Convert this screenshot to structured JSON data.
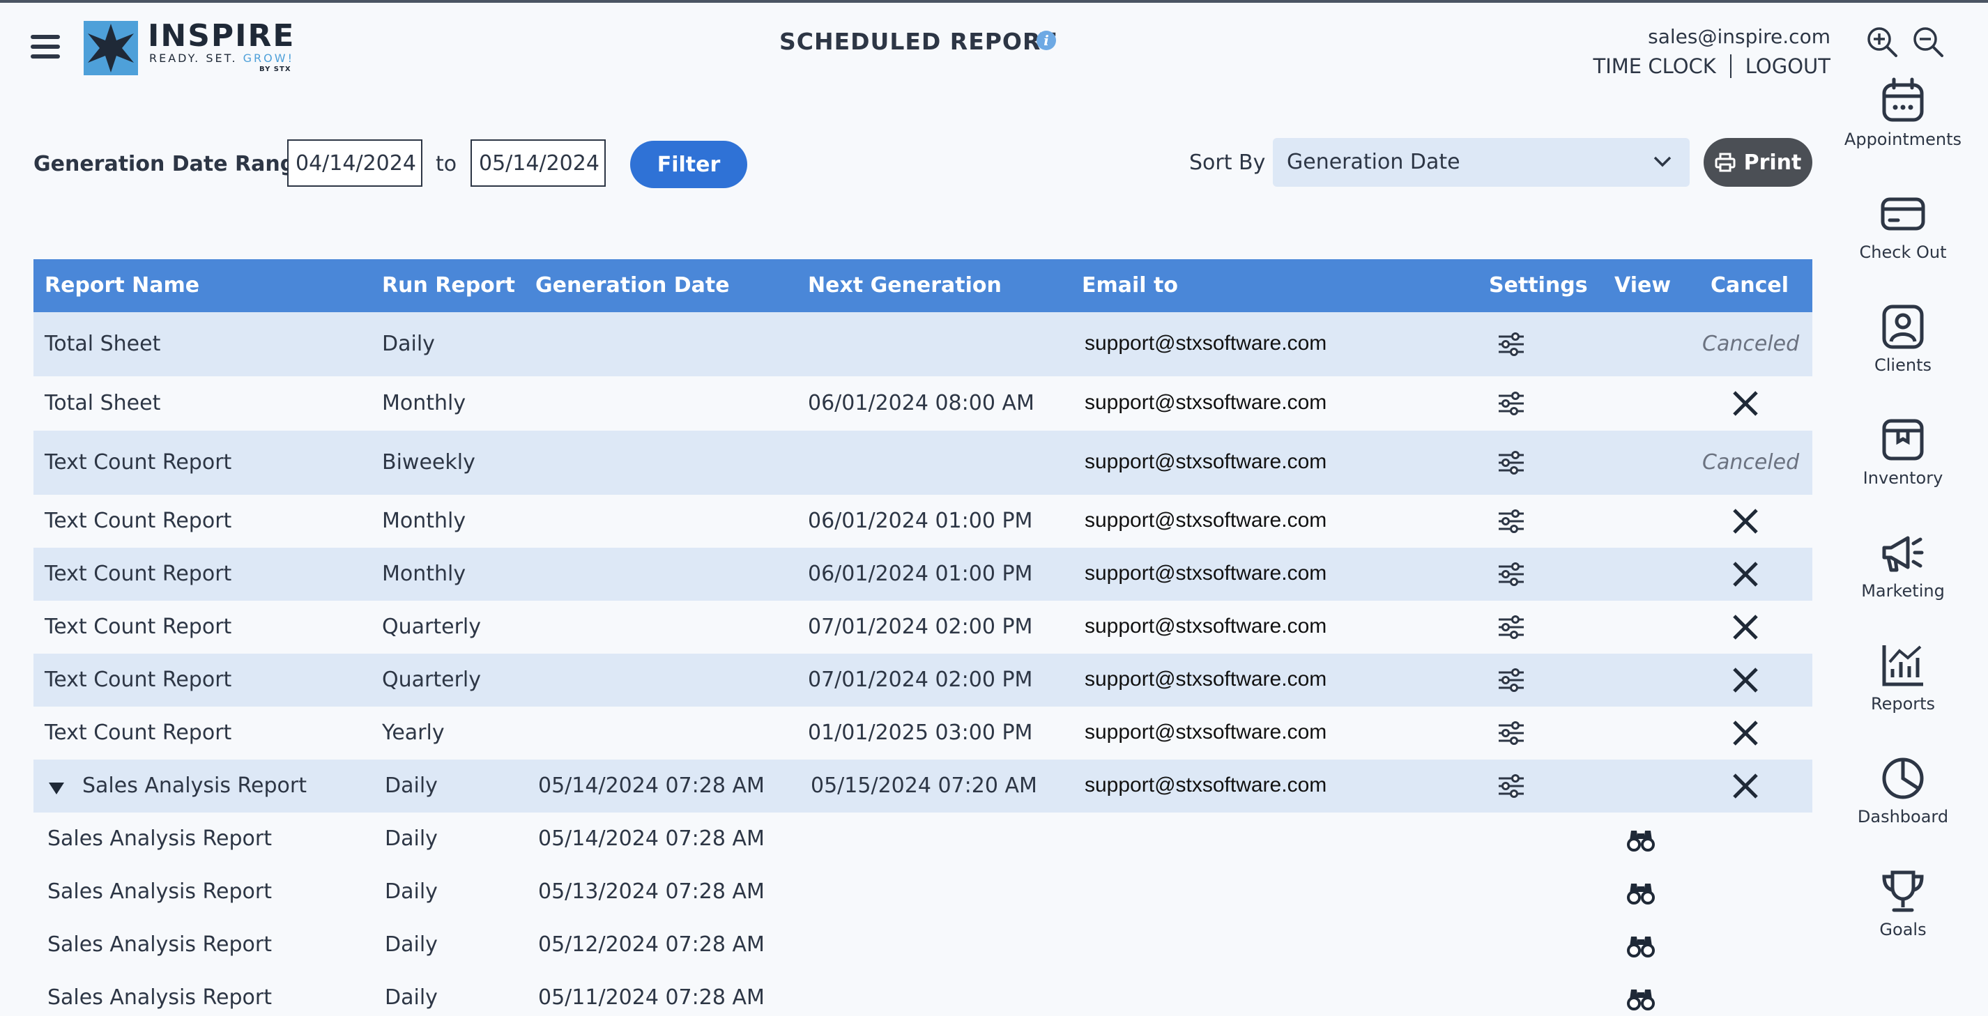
{
  "header": {
    "brand": "INSPIRE",
    "tagline_a": "READY. SET. ",
    "tagline_b": "GROW!",
    "by": "BY STX",
    "title": "SCHEDULED REPORT",
    "info": "i",
    "user_email": "sales@inspire.com",
    "time_clock": "TIME CLOCK",
    "logout": "LOGOUT"
  },
  "sidebar": {
    "items": [
      {
        "label": "Appointments",
        "icon": "calendar-icon"
      },
      {
        "label": "Check Out",
        "icon": "credit-card-icon"
      },
      {
        "label": "Clients",
        "icon": "client-icon"
      },
      {
        "label": "Inventory",
        "icon": "box-icon"
      },
      {
        "label": "Marketing",
        "icon": "megaphone-icon"
      },
      {
        "label": "Reports",
        "icon": "chart-icon"
      },
      {
        "label": "Dashboard",
        "icon": "pie-chart-icon"
      },
      {
        "label": "Goals",
        "icon": "trophy-icon"
      }
    ]
  },
  "filter": {
    "label": "Generation Date Range",
    "from": "04/14/2024",
    "to_label": "to",
    "to": "05/14/2024",
    "button": "Filter",
    "sort_label": "Sort By",
    "sort_value": "Generation Date",
    "print": "Print"
  },
  "table": {
    "columns": [
      "Report Name",
      "Run Report",
      "Generation Date",
      "Next Generation",
      "Email to",
      "Settings",
      "View",
      "Cancel"
    ],
    "rows": [
      {
        "name": "Total Sheet",
        "run": "Daily",
        "gen": "",
        "next": "",
        "email": "support@stxsoftware.com",
        "status": "Canceled"
      },
      {
        "name": "Total Sheet",
        "run": "Monthly",
        "gen": "",
        "next": "06/01/2024 08:00 AM",
        "email": "support@stxsoftware.com",
        "status": ""
      },
      {
        "name": "Text Count Report",
        "run": "Biweekly",
        "gen": "",
        "next": "",
        "email": "support@stxsoftware.com",
        "status": "Canceled"
      },
      {
        "name": "Text Count Report",
        "run": "Monthly",
        "gen": "",
        "next": "06/01/2024 01:00 PM",
        "email": "support@stxsoftware.com",
        "status": ""
      },
      {
        "name": "Text Count Report",
        "run": "Monthly",
        "gen": "",
        "next": "06/01/2024 01:00 PM",
        "email": "support@stxsoftware.com",
        "status": ""
      },
      {
        "name": "Text Count Report",
        "run": "Quarterly",
        "gen": "",
        "next": "07/01/2024 02:00 PM",
        "email": "support@stxsoftware.com",
        "status": ""
      },
      {
        "name": "Text Count Report",
        "run": "Quarterly",
        "gen": "",
        "next": "07/01/2024 02:00 PM",
        "email": "support@stxsoftware.com",
        "status": ""
      },
      {
        "name": "Text Count Report",
        "run": "Yearly",
        "gen": "",
        "next": "01/01/2025 03:00 PM",
        "email": "support@stxsoftware.com",
        "status": ""
      },
      {
        "name": "Sales Analysis Report",
        "run": "Daily",
        "gen": "05/14/2024 07:28 AM",
        "next": "05/15/2024 07:20 AM",
        "email": "support@stxsoftware.com",
        "status": ""
      }
    ],
    "subrows": [
      {
        "name": "Sales Analysis Report",
        "run": "Daily",
        "gen": "05/14/2024 07:28 AM"
      },
      {
        "name": "Sales Analysis Report",
        "run": "Daily",
        "gen": "05/13/2024 07:28 AM"
      },
      {
        "name": "Sales Analysis Report",
        "run": "Daily",
        "gen": "05/12/2024 07:28 AM"
      },
      {
        "name": "Sales Analysis Report",
        "run": "Daily",
        "gen": "05/11/2024 07:28 AM"
      }
    ]
  }
}
